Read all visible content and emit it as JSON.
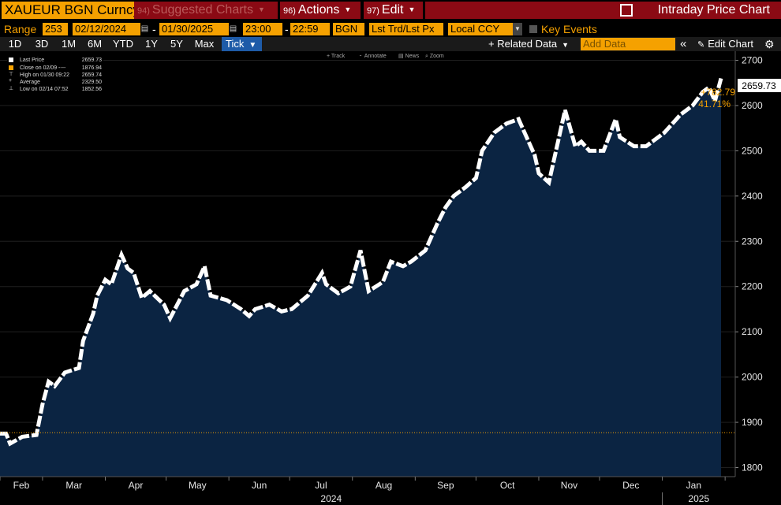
{
  "toolbar": {
    "ticker": "XAUEUR BGN Curncy",
    "suggested_num": "94)",
    "suggested_label": "Suggested Charts",
    "actions_num": "96)",
    "actions_label": "Actions",
    "edit_num": "97)",
    "edit_label": "Edit",
    "title": "Intraday Price Chart"
  },
  "params": {
    "range_label": "Range",
    "range_value": "253",
    "start_date": "02/12/2024",
    "end_date": "01/30/2025",
    "start_time": "23:00",
    "end_time": "22:59",
    "source": "BGN",
    "price_type": "Lst Trd/Lst Px",
    "currency": "Local CCY",
    "key_events": "Key Events"
  },
  "ranges": [
    "1D",
    "3D",
    "1M",
    "6M",
    "YTD",
    "1Y",
    "5Y",
    "Max"
  ],
  "frequency": "Tick",
  "related_data": "+ Related Data",
  "add_data_placeholder": "Add Data",
  "edit_chart": "Edit Chart",
  "chart_tools": [
    "Track",
    "Annotate",
    "News",
    "Zoom"
  ],
  "legend": [
    {
      "label": "Last Price",
      "value": "2659.73",
      "color": "#ffffff"
    },
    {
      "label": "Close on 02/09 ----",
      "value": "1876.94",
      "color": "#f5a100"
    },
    {
      "label": "High on 01/30 09:22",
      "value": "2659.74",
      "color": "#ffffff"
    },
    {
      "label": "Average",
      "value": "2329.50",
      "color": "#ffffff"
    },
    {
      "label": "Low on 02/14 07:52",
      "value": "1852.56",
      "color": "#ffffff"
    }
  ],
  "chart_data": {
    "type": "area",
    "ylim": [
      1780,
      2720
    ],
    "y_ticks": [
      1800,
      1900,
      2000,
      2100,
      2200,
      2300,
      2400,
      2500,
      2600,
      2700
    ],
    "x_month_labels": [
      "Feb",
      "Mar",
      "Apr",
      "May",
      "Jun",
      "Jul",
      "Aug",
      "Sep",
      "Oct",
      "Nov",
      "Dec",
      "Jan"
    ],
    "year_labels": [
      "2024",
      "2025"
    ],
    "reference_close": 1876.94,
    "last_price": "2659.73",
    "change": "+782.79",
    "change_pct": "41.71%",
    "series": [
      {
        "name": "Last Price",
        "x": [
          "2024-02-12",
          "2024-02-14",
          "2024-02-20",
          "2024-02-27",
          "2024-03-01",
          "2024-03-04",
          "2024-03-07",
          "2024-03-12",
          "2024-03-19",
          "2024-03-21",
          "2024-03-26",
          "2024-03-28",
          "2024-04-01",
          "2024-04-04",
          "2024-04-09",
          "2024-04-12",
          "2024-04-15",
          "2024-04-19",
          "2024-04-23",
          "2024-04-30",
          "2024-05-03",
          "2024-05-10",
          "2024-05-16",
          "2024-05-20",
          "2024-05-23",
          "2024-05-31",
          "2024-06-07",
          "2024-06-11",
          "2024-06-14",
          "2024-06-21",
          "2024-06-27",
          "2024-07-02",
          "2024-07-10",
          "2024-07-17",
          "2024-07-19",
          "2024-07-25",
          "2024-07-31",
          "2024-08-05",
          "2024-08-09",
          "2024-08-16",
          "2024-08-20",
          "2024-08-26",
          "2024-08-30",
          "2024-09-06",
          "2024-09-12",
          "2024-09-16",
          "2024-09-20",
          "2024-09-26",
          "2024-10-01",
          "2024-10-04",
          "2024-10-10",
          "2024-10-16",
          "2024-10-22",
          "2024-10-30",
          "2024-11-01",
          "2024-11-06",
          "2024-11-14",
          "2024-11-19",
          "2024-11-22",
          "2024-11-26",
          "2024-12-03",
          "2024-12-09",
          "2024-12-11",
          "2024-12-18",
          "2024-12-24",
          "2025-01-02",
          "2025-01-10",
          "2025-01-16",
          "2025-01-21",
          "2025-01-24",
          "2025-01-27",
          "2025-01-30"
        ],
        "y": [
          1875,
          1853,
          1868,
          1872,
          1940,
          1990,
          1980,
          2010,
          2020,
          2080,
          2140,
          2180,
          2215,
          2205,
          2270,
          2240,
          2230,
          2175,
          2190,
          2160,
          2130,
          2190,
          2205,
          2245,
          2180,
          2170,
          2150,
          2135,
          2150,
          2160,
          2145,
          2150,
          2180,
          2230,
          2205,
          2185,
          2200,
          2280,
          2190,
          2210,
          2255,
          2245,
          2255,
          2280,
          2340,
          2375,
          2400,
          2420,
          2440,
          2500,
          2540,
          2560,
          2570,
          2490,
          2450,
          2430,
          2590,
          2510,
          2520,
          2500,
          2500,
          2570,
          2530,
          2510,
          2510,
          2540,
          2580,
          2600,
          2630,
          2640,
          2610,
          2660
        ]
      }
    ]
  }
}
